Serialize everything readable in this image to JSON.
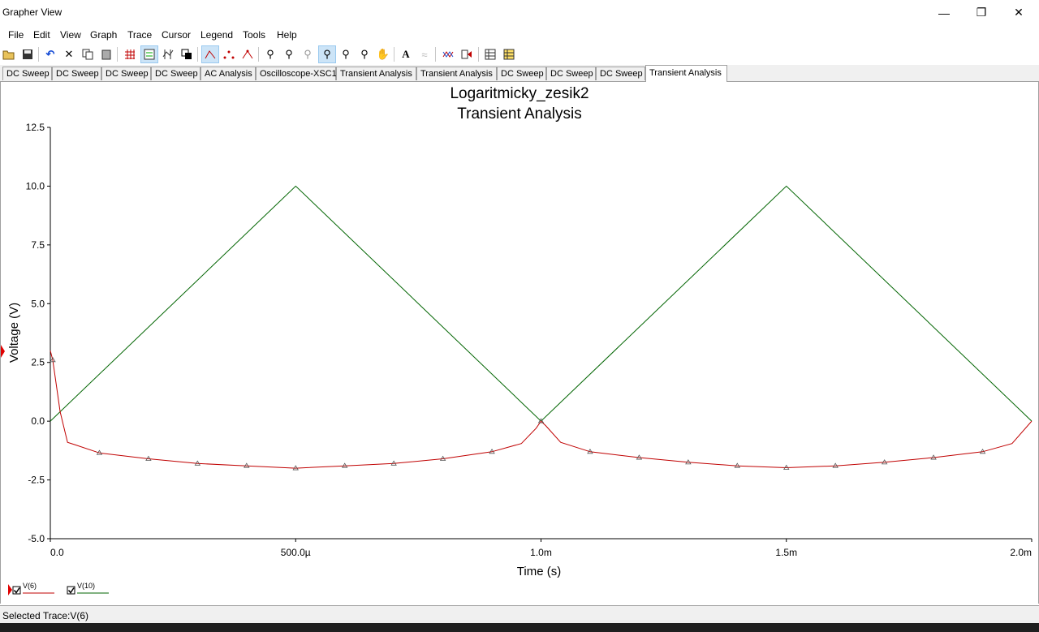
{
  "window": {
    "title": "Grapher View"
  },
  "menu": [
    "File",
    "Edit",
    "View",
    "Graph",
    "Trace",
    "Cursor",
    "Legend",
    "Tools",
    "Help"
  ],
  "toolbar_icons": [
    "open-icon",
    "save-icon",
    "undo-icon",
    "cut-icon",
    "copy-icon",
    "paste-icon",
    "grid-icon",
    "legend-icon",
    "cursors-icon",
    "reverse-colors-icon",
    "line-trace-icon",
    "dots-trace-icon",
    "line-dots-trace-icon",
    "zoom-in-icon",
    "zoom-out-icon",
    "zoom-full-icon",
    "zoom-area-icon",
    "zoom-x-icon",
    "zoom-y-icon",
    "pan-hand-icon",
    "text-icon",
    "label-icon",
    "overlay-traces-icon",
    "select-marks-icon",
    "export-excel-icon",
    "export-lvm-icon"
  ],
  "tabs": [
    "DC Sweep",
    "DC Sweep",
    "DC Sweep",
    "DC Sweep",
    "AC Analysis",
    "Oscilloscope-XSC1",
    "Transient Analysis",
    "Transient Analysis",
    "DC Sweep",
    "DC Sweep",
    "DC Sweep",
    "Transient Analysis"
  ],
  "active_tab": 11,
  "legend": [
    {
      "name": "V(6)",
      "color": "#c00000"
    },
    {
      "name": "V(10)",
      "color": "#006400"
    }
  ],
  "status": {
    "text": "Selected Trace:V(6)"
  },
  "chart_data": {
    "type": "line",
    "title": "Logaritmicky_zesik2",
    "subtitle": "Transient Analysis",
    "xlabel": "Time (s)",
    "ylabel": "Voltage (V)",
    "xlim": [
      0,
      0.002
    ],
    "ylim": [
      -5.0,
      12.5
    ],
    "xticks": [
      0,
      0.0005,
      0.001,
      0.0015,
      0.002
    ],
    "xtick_labels": [
      "0.0",
      "500.0µ",
      "1.0m",
      "1.5m",
      "2.0m"
    ],
    "yticks": [
      12.5,
      10.0,
      7.5,
      5.0,
      2.5,
      0.0,
      -2.5,
      -5.0
    ],
    "ytick_labels": [
      "12.5",
      "10.0",
      "7.5",
      "5.0",
      "2.5",
      "0.0",
      "-2.5",
      "-5.0"
    ],
    "grid": false,
    "series": [
      {
        "name": "V(10)",
        "color": "#006400",
        "x": [
          0,
          0.0005,
          0.001,
          0.0015,
          0.002
        ],
        "y": [
          0,
          10.0,
          0,
          10.0,
          0
        ]
      },
      {
        "name": "V(6)",
        "color": "#c00000",
        "x": [
          0,
          5e-06,
          2e-05,
          3.5e-05,
          5e-05,
          0.0001,
          0.0002,
          0.0003,
          0.0004,
          0.0005,
          0.0006,
          0.0007,
          0.0008,
          0.0009,
          0.00096,
          0.00099,
          0.001,
          0.00101,
          0.00104,
          0.0011,
          0.0012,
          0.0013,
          0.0014,
          0.0015,
          0.0016,
          0.0017,
          0.0018,
          0.0019,
          0.00196,
          0.002
        ],
        "y": [
          3.0,
          2.6,
          0.4,
          -0.9,
          -1.0,
          -1.35,
          -1.6,
          -1.8,
          -1.9,
          -2.0,
          -1.9,
          -1.8,
          -1.6,
          -1.3,
          -0.95,
          -0.3,
          0.0,
          -0.2,
          -0.9,
          -1.3,
          -1.55,
          -1.75,
          -1.9,
          -1.98,
          -1.9,
          -1.75,
          -1.55,
          -1.3,
          -0.95,
          0.0
        ],
        "markers_x": [
          5e-06,
          0.0001,
          0.0002,
          0.0003,
          0.0004,
          0.0005,
          0.0006,
          0.0007,
          0.0008,
          0.0009,
          0.001,
          0.0011,
          0.0012,
          0.0013,
          0.0014,
          0.0015,
          0.0016,
          0.0017,
          0.0018,
          0.0019
        ]
      }
    ]
  }
}
